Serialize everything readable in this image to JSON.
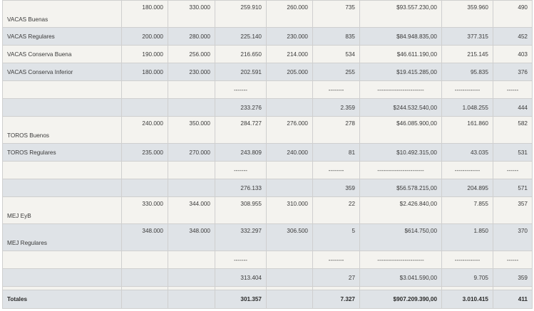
{
  "rows": [
    {
      "style": "light",
      "h": 38,
      "mid": false,
      "cells": [
        "VACAS Buenas",
        "180.000",
        "330.000",
        "259.910",
        "260.000",
        "735",
        "$93.557.230,00",
        "359.960",
        "490"
      ]
    },
    {
      "style": "dark",
      "h": 25,
      "mid": true,
      "cells": [
        "VACAS Regulares",
        "200.000",
        "280.000",
        "225.140",
        "230.000",
        "835",
        "$84.948.835,00",
        "377.315",
        "452"
      ]
    },
    {
      "style": "light",
      "h": 25,
      "mid": true,
      "cells": [
        "VACAS Conserva Buena",
        "190.000",
        "256.000",
        "216.650",
        "214.000",
        "534",
        "$46.611.190,00",
        "215.145",
        "403"
      ]
    },
    {
      "style": "dark",
      "h": 25,
      "mid": true,
      "cells": [
        "VACAS Conserva Inferior",
        "180.000",
        "230.000",
        "202.591",
        "205.000",
        "255",
        "$19.415.285,00",
        "95.835",
        "376"
      ]
    },
    {
      "style": "light",
      "h": 25,
      "mid": true,
      "cells": [
        "",
        "",
        "",
        "",
        "",
        "",
        "",
        "",
        ""
      ]
    },
    {
      "style": "dark",
      "h": 25,
      "mid": true,
      "cells": [
        "",
        "",
        "",
        "233.276",
        "",
        "2.359",
        "$244.532.540,00",
        "1.048.255",
        "444"
      ]
    },
    {
      "style": "light",
      "h": 38,
      "mid": false,
      "cells": [
        "TOROS Buenos",
        "240.000",
        "350.000",
        "284.727",
        "276.000",
        "278",
        "$46.085.900,00",
        "161.860",
        "582"
      ]
    },
    {
      "style": "dark",
      "h": 25,
      "mid": true,
      "cells": [
        "TOROS Regulares",
        "235.000",
        "270.000",
        "243.809",
        "240.000",
        "81",
        "$10.492.315,00",
        "43.035",
        "531"
      ]
    },
    {
      "style": "light",
      "h": 25,
      "mid": true,
      "cells": [
        "",
        "",
        "",
        "",
        "",
        "",
        "",
        "",
        ""
      ]
    },
    {
      "style": "dark",
      "h": 25,
      "mid": true,
      "cells": [
        "",
        "",
        "",
        "276.133",
        "",
        "359",
        "$56.578.215,00",
        "204.895",
        "571"
      ]
    },
    {
      "style": "light",
      "h": 38,
      "mid": false,
      "cells": [
        "MEJ EyB",
        "330.000",
        "344.000",
        "308.955",
        "310.000",
        "22",
        "$2.426.840,00",
        "7.855",
        "357"
      ]
    },
    {
      "style": "dark",
      "h": 38,
      "mid": false,
      "cells": [
        "MEJ Regulares",
        "348.000",
        "348.000",
        "332.297",
        "306.500",
        "5",
        "$614.750,00",
        "1.850",
        "370"
      ]
    },
    {
      "style": "light",
      "h": 25,
      "mid": true,
      "cells": [
        "",
        "",
        "",
        "",
        "",
        "",
        "",
        "",
        ""
      ]
    },
    {
      "style": "dark",
      "h": 25,
      "mid": true,
      "cells": [
        "",
        "",
        "",
        "313.404",
        "",
        "27",
        "$3.041.590,00",
        "9.705",
        "359"
      ]
    },
    {
      "style": "light",
      "h": 5,
      "mid": true,
      "cells": [
        "",
        "",
        "",
        "",
        "",
        "",
        "",
        "",
        ""
      ]
    },
    {
      "style": "total",
      "h": 26,
      "mid": true,
      "cells": [
        "Totales",
        "",
        "",
        "301.357",
        "",
        "7.327",
        "$907.209.390,00",
        "3.010.415",
        "411"
      ]
    }
  ],
  "dashes": [
    {
      "row": 4,
      "cells": {
        "3": "-------",
        "5": "--------",
        "6": "------------------------",
        "7": "-------------",
        "8": "------"
      }
    },
    {
      "row": 8,
      "cells": {
        "3": "-------",
        "5": "--------",
        "6": "------------------------",
        "7": "-------------",
        "8": "------"
      }
    },
    {
      "row": 12,
      "cells": {
        "3": "-------",
        "5": "--------",
        "6": "------------------------",
        "7": "-------------",
        "8": "------"
      }
    }
  ]
}
